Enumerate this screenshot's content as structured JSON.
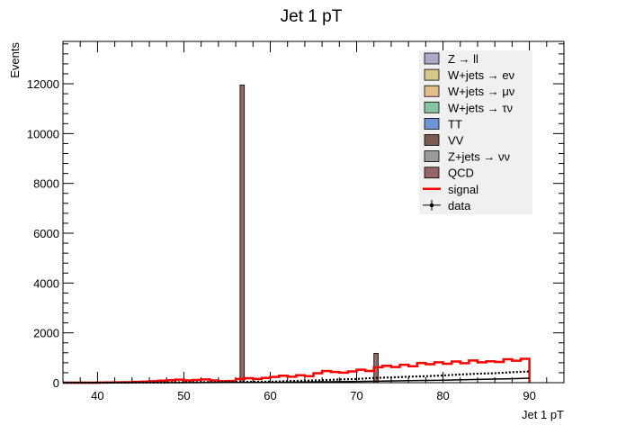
{
  "chart_data": {
    "type": "bar",
    "title": "Jet 1 pT",
    "xlabel": "Jet 1 pT",
    "ylabel": "Events",
    "xlim": [
      36,
      94
    ],
    "ylim": [
      0,
      13700
    ],
    "xticks": [
      40,
      50,
      60,
      70,
      80,
      90
    ],
    "yticks": [
      0,
      2000,
      4000,
      6000,
      8000,
      10000,
      12000
    ],
    "bin_width": 0.5,
    "legend_position": "top-right",
    "legend": [
      {
        "name": "Z → ll",
        "kind": "box",
        "color": "#a9a9c8"
      },
      {
        "name": "W+jets → eν",
        "kind": "box",
        "color": "#d4c98a"
      },
      {
        "name": "W+jets → μν",
        "kind": "box",
        "color": "#e3bd8c"
      },
      {
        "name": "W+jets → τν",
        "kind": "box",
        "color": "#86c5a3"
      },
      {
        "name": "TT",
        "kind": "box",
        "color": "#6f93d6"
      },
      {
        "name": "VV",
        "kind": "box",
        "color": "#7a5a4e"
      },
      {
        "name": "Z+jets → νν",
        "kind": "box",
        "color": "#9a9a9a"
      },
      {
        "name": "QCD",
        "kind": "box",
        "color": "#946666"
      },
      {
        "name": "signal",
        "kind": "line",
        "color": "#ff0000"
      },
      {
        "name": "data",
        "kind": "marker",
        "color": "#000000"
      }
    ],
    "series": [
      {
        "name": "QCD",
        "kind": "bars",
        "color": "#946666",
        "x": [
          56.75,
          72.25
        ],
        "values": [
          11950,
          1180
        ]
      },
      {
        "name": "signal",
        "kind": "step",
        "color": "#ff0000",
        "x": [
          36,
          37,
          38,
          39,
          40,
          41,
          42,
          43,
          44,
          45,
          46,
          47,
          48,
          49,
          50,
          51,
          52,
          53,
          54,
          55,
          56,
          57,
          58,
          59,
          60,
          61,
          62,
          63,
          64,
          65,
          66,
          67,
          68,
          69,
          70,
          71,
          72,
          73,
          74,
          75,
          76,
          77,
          78,
          79,
          80,
          81,
          82,
          83,
          84,
          85,
          86,
          87,
          88,
          89,
          90
        ],
        "values": [
          0,
          0,
          0,
          0,
          5,
          10,
          15,
          20,
          30,
          40,
          60,
          80,
          100,
          120,
          90,
          110,
          130,
          90,
          60,
          70,
          150,
          180,
          150,
          190,
          230,
          280,
          240,
          300,
          260,
          380,
          470,
          430,
          400,
          450,
          520,
          470,
          620,
          680,
          630,
          720,
          660,
          790,
          740,
          820,
          760,
          850,
          780,
          890,
          820,
          860,
          830,
          940,
          880,
          960,
          0
        ]
      },
      {
        "name": "data",
        "kind": "dotted",
        "color": "#000000",
        "x": [
          36,
          40,
          44,
          48,
          52,
          56,
          60,
          62,
          64,
          66,
          68,
          70,
          72,
          74,
          76,
          78,
          80,
          82,
          84,
          86,
          88,
          90
        ],
        "values": [
          0,
          0,
          5,
          10,
          20,
          30,
          40,
          60,
          80,
          100,
          130,
          150,
          190,
          210,
          240,
          260,
          290,
          330,
          360,
          380,
          420,
          450
        ]
      },
      {
        "name": "background total",
        "kind": "solid",
        "color": "#000000",
        "x": [
          36,
          44,
          52,
          56,
          60,
          64,
          68,
          72,
          76,
          80,
          84,
          88,
          90
        ],
        "values": [
          0,
          0,
          5,
          10,
          15,
          25,
          40,
          60,
          80,
          100,
          130,
          160,
          180
        ]
      }
    ]
  }
}
